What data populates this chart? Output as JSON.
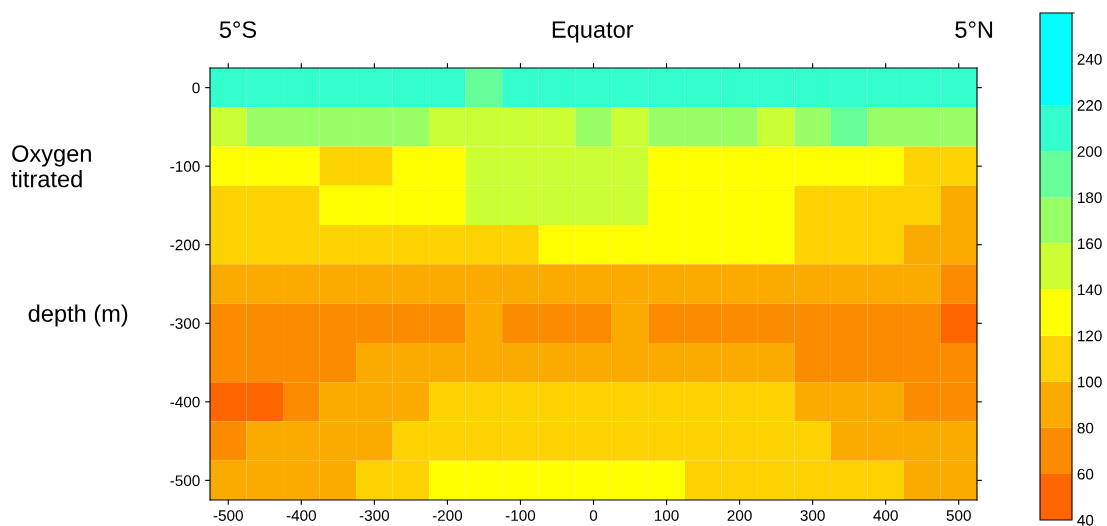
{
  "chart_data": {
    "type": "heatmap",
    "annotations": [
      "5°S",
      "Equator",
      "5°N",
      "Oxygen\ntitrated",
      "depth (m)"
    ],
    "categories": [
      "-500",
      null,
      "-400",
      null,
      "-300",
      null,
      "-200",
      null,
      "-100",
      null,
      "0",
      null,
      "100",
      null,
      "200",
      null,
      "300",
      null,
      "400",
      null,
      "500"
    ],
    "y_categories": [
      "0",
      null,
      "-100",
      null,
      "-200",
      null,
      "-300",
      null,
      "-400",
      null,
      "-500"
    ],
    "cells": [
      [
        210,
        210,
        210,
        210,
        210,
        210,
        210,
        190,
        210,
        210,
        210,
        210,
        210,
        210,
        210,
        210,
        210,
        210,
        210,
        210,
        210
      ],
      [
        150,
        170,
        170,
        170,
        170,
        170,
        150,
        150,
        150,
        150,
        170,
        150,
        170,
        170,
        170,
        150,
        170,
        190,
        170,
        170,
        170
      ],
      [
        130,
        130,
        130,
        110,
        110,
        130,
        130,
        150,
        150,
        150,
        150,
        150,
        130,
        130,
        130,
        130,
        130,
        130,
        130,
        110,
        110
      ],
      [
        110,
        110,
        110,
        130,
        130,
        130,
        130,
        150,
        150,
        150,
        150,
        150,
        130,
        130,
        130,
        130,
        110,
        110,
        110,
        110,
        90
      ],
      [
        110,
        110,
        110,
        110,
        110,
        110,
        110,
        110,
        110,
        130,
        130,
        130,
        130,
        130,
        130,
        130,
        110,
        110,
        110,
        90,
        90
      ],
      [
        90,
        90,
        90,
        90,
        90,
        90,
        90,
        90,
        90,
        90,
        90,
        90,
        90,
        90,
        90,
        90,
        90,
        90,
        90,
        90,
        70
      ],
      [
        70,
        70,
        70,
        70,
        70,
        70,
        70,
        90,
        70,
        70,
        70,
        90,
        70,
        70,
        70,
        70,
        70,
        70,
        70,
        70,
        50
      ],
      [
        70,
        70,
        70,
        70,
        90,
        90,
        90,
        90,
        90,
        90,
        90,
        90,
        90,
        90,
        90,
        90,
        70,
        70,
        70,
        70,
        70
      ],
      [
        50,
        50,
        70,
        90,
        90,
        90,
        110,
        110,
        110,
        110,
        110,
        110,
        110,
        110,
        110,
        110,
        90,
        90,
        90,
        70,
        70
      ],
      [
        70,
        90,
        90,
        90,
        90,
        110,
        110,
        110,
        110,
        110,
        110,
        110,
        110,
        110,
        110,
        110,
        110,
        90,
        90,
        90,
        90
      ],
      [
        90,
        90,
        90,
        90,
        110,
        110,
        130,
        130,
        130,
        130,
        130,
        130,
        130,
        110,
        110,
        110,
        110,
        110,
        110,
        90,
        90
      ]
    ],
    "colors": [
      "#ff6600",
      "#fb8c00",
      "#fbab00",
      "#fcd200",
      "#ffff00",
      "#ccff33",
      "#99ff66",
      "#66ff99",
      "#33ffcc",
      "#00ffff",
      "#00ffff"
    ],
    "clim": [
      40,
      260
    ],
    "cticks": [
      40,
      60,
      80,
      100,
      120,
      140,
      160,
      180,
      200,
      220,
      240
    ]
  }
}
